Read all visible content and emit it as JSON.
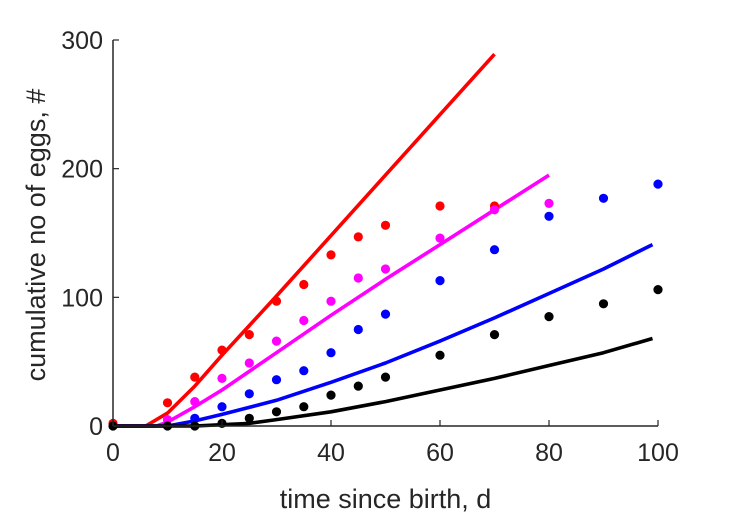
{
  "chart_data": {
    "type": "line",
    "xlabel": "time since birth, d",
    "ylabel": "cumulative no of eggs, #",
    "xlim": [
      0,
      100
    ],
    "ylim": [
      0,
      300
    ],
    "xticks": [
      0,
      20,
      40,
      60,
      80,
      100
    ],
    "yticks": [
      0,
      100,
      200,
      300
    ],
    "grid": false,
    "legend": "none",
    "series": [
      {
        "color": "#ff0000",
        "points": {
          "x": [
            0,
            10,
            15,
            20,
            25,
            30,
            35,
            40,
            45,
            50,
            60,
            70
          ],
          "y": [
            2,
            18,
            38,
            59,
            71,
            97,
            110,
            133,
            147,
            156,
            171,
            171
          ]
        },
        "curve": {
          "x": [
            0,
            6,
            10,
            15,
            20,
            25,
            30,
            40,
            50,
            60,
            70
          ],
          "y": [
            0,
            0,
            10,
            31,
            55,
            78,
            101,
            148,
            195,
            242,
            289
          ]
        }
      },
      {
        "color": "#ff00ff",
        "points": {
          "x": [
            10,
            15,
            20,
            25,
            30,
            35,
            40,
            45,
            50,
            60,
            70,
            80
          ],
          "y": [
            5,
            19,
            37,
            49,
            66,
            82,
            97,
            115,
            122,
            146,
            168,
            173
          ]
        },
        "curve": {
          "x": [
            0,
            8,
            10,
            15,
            20,
            30,
            40,
            50,
            60,
            70,
            80
          ],
          "y": [
            0,
            0,
            3,
            15,
            28,
            57,
            86,
            114,
            141,
            168,
            195
          ]
        }
      },
      {
        "color": "#0000ff",
        "points": {
          "x": [
            15,
            20,
            25,
            30,
            35,
            40,
            45,
            50,
            60,
            70,
            80,
            90,
            100
          ],
          "y": [
            6,
            15,
            25,
            36,
            43,
            57,
            75,
            87,
            113,
            137,
            163,
            177,
            188
          ]
        },
        "curve": {
          "x": [
            0,
            10,
            15,
            20,
            30,
            40,
            50,
            60,
            70,
            80,
            90,
            99
          ],
          "y": [
            0,
            0,
            4,
            9,
            20,
            34,
            49,
            66,
            84,
            103,
            122,
            141
          ]
        }
      },
      {
        "color": "#000000",
        "points": {
          "x": [
            0,
            10,
            15,
            20,
            25,
            30,
            35,
            40,
            45,
            50,
            60,
            70,
            80,
            90,
            100
          ],
          "y": [
            0,
            0,
            0,
            2,
            6,
            11,
            15,
            24,
            31,
            38,
            55,
            71,
            85,
            95,
            106
          ]
        },
        "curve": {
          "x": [
            0,
            15,
            20,
            25,
            30,
            40,
            50,
            60,
            70,
            80,
            90,
            99
          ],
          "y": [
            0,
            0,
            1,
            2,
            5,
            11,
            19,
            28,
            37,
            47,
            57,
            68
          ]
        }
      }
    ]
  }
}
